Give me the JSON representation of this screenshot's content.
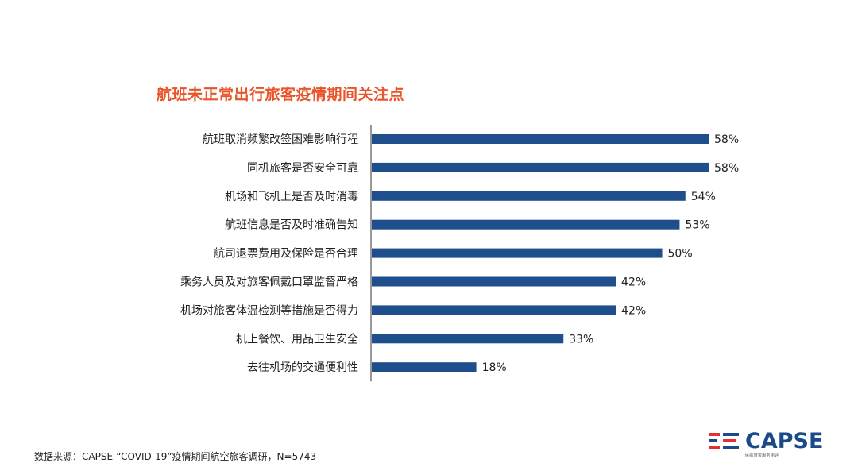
{
  "chart_data": {
    "type": "bar",
    "orientation": "horizontal",
    "title": "航班未正常出行旅客疫情期间关注点",
    "categories": [
      "航班取消频繁改签困难影响行程",
      "同机旅客是否安全可靠",
      "机场和飞机上是否及时消毒",
      "航班信息是否及时准确告知",
      "航司退票费用及保险是否合理",
      "乘务人员及对旅客佩戴口罩监督严格",
      "机场对旅客体温检测等措施是否得力",
      "机上餐饮、用品卫生安全",
      "去往机场的交通便利性"
    ],
    "values": [
      58,
      58,
      54,
      53,
      50,
      42,
      42,
      33,
      18
    ],
    "value_labels": [
      "58%",
      "58%",
      "54%",
      "53%",
      "50%",
      "42%",
      "42%",
      "33%",
      "18%"
    ],
    "xlim": [
      0,
      58
    ],
    "grid": false,
    "legend": "none"
  },
  "colors": {
    "title": "#e8552a",
    "bar": "#1f4e8c",
    "axis": "#333333",
    "text": "#222222",
    "logo_red": "#e5312b",
    "logo_blue": "#1b4a8a"
  },
  "source_note": "数据来源：CAPSE-“COVID-19”疫情期间航空旅客调研，N=5743",
  "logo": {
    "name": "CAPSE",
    "subtitle": "民航旅客服务测评"
  }
}
